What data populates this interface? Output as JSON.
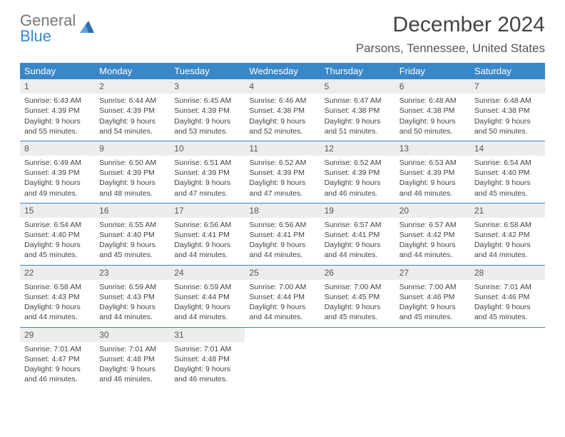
{
  "logo": {
    "top": "General",
    "bottom": "Blue"
  },
  "title": "December 2024",
  "location": "Parsons, Tennessee, United States",
  "colors": {
    "header_bg": "#3a87c7",
    "daynum_bg": "#eceded",
    "text": "#444",
    "border": "#3a87c7"
  },
  "day_labels": [
    "Sunday",
    "Monday",
    "Tuesday",
    "Wednesday",
    "Thursday",
    "Friday",
    "Saturday"
  ],
  "weeks": [
    [
      {
        "n": "1",
        "sr": "Sunrise: 6:43 AM",
        "ss": "Sunset: 4:39 PM",
        "dl": "Daylight: 9 hours and 55 minutes."
      },
      {
        "n": "2",
        "sr": "Sunrise: 6:44 AM",
        "ss": "Sunset: 4:39 PM",
        "dl": "Daylight: 9 hours and 54 minutes."
      },
      {
        "n": "3",
        "sr": "Sunrise: 6:45 AM",
        "ss": "Sunset: 4:39 PM",
        "dl": "Daylight: 9 hours and 53 minutes."
      },
      {
        "n": "4",
        "sr": "Sunrise: 6:46 AM",
        "ss": "Sunset: 4:38 PM",
        "dl": "Daylight: 9 hours and 52 minutes."
      },
      {
        "n": "5",
        "sr": "Sunrise: 6:47 AM",
        "ss": "Sunset: 4:38 PM",
        "dl": "Daylight: 9 hours and 51 minutes."
      },
      {
        "n": "6",
        "sr": "Sunrise: 6:48 AM",
        "ss": "Sunset: 4:38 PM",
        "dl": "Daylight: 9 hours and 50 minutes."
      },
      {
        "n": "7",
        "sr": "Sunrise: 6:48 AM",
        "ss": "Sunset: 4:38 PM",
        "dl": "Daylight: 9 hours and 50 minutes."
      }
    ],
    [
      {
        "n": "8",
        "sr": "Sunrise: 6:49 AM",
        "ss": "Sunset: 4:39 PM",
        "dl": "Daylight: 9 hours and 49 minutes."
      },
      {
        "n": "9",
        "sr": "Sunrise: 6:50 AM",
        "ss": "Sunset: 4:39 PM",
        "dl": "Daylight: 9 hours and 48 minutes."
      },
      {
        "n": "10",
        "sr": "Sunrise: 6:51 AM",
        "ss": "Sunset: 4:39 PM",
        "dl": "Daylight: 9 hours and 47 minutes."
      },
      {
        "n": "11",
        "sr": "Sunrise: 6:52 AM",
        "ss": "Sunset: 4:39 PM",
        "dl": "Daylight: 9 hours and 47 minutes."
      },
      {
        "n": "12",
        "sr": "Sunrise: 6:52 AM",
        "ss": "Sunset: 4:39 PM",
        "dl": "Daylight: 9 hours and 46 minutes."
      },
      {
        "n": "13",
        "sr": "Sunrise: 6:53 AM",
        "ss": "Sunset: 4:39 PM",
        "dl": "Daylight: 9 hours and 46 minutes."
      },
      {
        "n": "14",
        "sr": "Sunrise: 6:54 AM",
        "ss": "Sunset: 4:40 PM",
        "dl": "Daylight: 9 hours and 45 minutes."
      }
    ],
    [
      {
        "n": "15",
        "sr": "Sunrise: 6:54 AM",
        "ss": "Sunset: 4:40 PM",
        "dl": "Daylight: 9 hours and 45 minutes."
      },
      {
        "n": "16",
        "sr": "Sunrise: 6:55 AM",
        "ss": "Sunset: 4:40 PM",
        "dl": "Daylight: 9 hours and 45 minutes."
      },
      {
        "n": "17",
        "sr": "Sunrise: 6:56 AM",
        "ss": "Sunset: 4:41 PM",
        "dl": "Daylight: 9 hours and 44 minutes."
      },
      {
        "n": "18",
        "sr": "Sunrise: 6:56 AM",
        "ss": "Sunset: 4:41 PM",
        "dl": "Daylight: 9 hours and 44 minutes."
      },
      {
        "n": "19",
        "sr": "Sunrise: 6:57 AM",
        "ss": "Sunset: 4:41 PM",
        "dl": "Daylight: 9 hours and 44 minutes."
      },
      {
        "n": "20",
        "sr": "Sunrise: 6:57 AM",
        "ss": "Sunset: 4:42 PM",
        "dl": "Daylight: 9 hours and 44 minutes."
      },
      {
        "n": "21",
        "sr": "Sunrise: 6:58 AM",
        "ss": "Sunset: 4:42 PM",
        "dl": "Daylight: 9 hours and 44 minutes."
      }
    ],
    [
      {
        "n": "22",
        "sr": "Sunrise: 6:58 AM",
        "ss": "Sunset: 4:43 PM",
        "dl": "Daylight: 9 hours and 44 minutes."
      },
      {
        "n": "23",
        "sr": "Sunrise: 6:59 AM",
        "ss": "Sunset: 4:43 PM",
        "dl": "Daylight: 9 hours and 44 minutes."
      },
      {
        "n": "24",
        "sr": "Sunrise: 6:59 AM",
        "ss": "Sunset: 4:44 PM",
        "dl": "Daylight: 9 hours and 44 minutes."
      },
      {
        "n": "25",
        "sr": "Sunrise: 7:00 AM",
        "ss": "Sunset: 4:44 PM",
        "dl": "Daylight: 9 hours and 44 minutes."
      },
      {
        "n": "26",
        "sr": "Sunrise: 7:00 AM",
        "ss": "Sunset: 4:45 PM",
        "dl": "Daylight: 9 hours and 45 minutes."
      },
      {
        "n": "27",
        "sr": "Sunrise: 7:00 AM",
        "ss": "Sunset: 4:46 PM",
        "dl": "Daylight: 9 hours and 45 minutes."
      },
      {
        "n": "28",
        "sr": "Sunrise: 7:01 AM",
        "ss": "Sunset: 4:46 PM",
        "dl": "Daylight: 9 hours and 45 minutes."
      }
    ],
    [
      {
        "n": "29",
        "sr": "Sunrise: 7:01 AM",
        "ss": "Sunset: 4:47 PM",
        "dl": "Daylight: 9 hours and 46 minutes."
      },
      {
        "n": "30",
        "sr": "Sunrise: 7:01 AM",
        "ss": "Sunset: 4:48 PM",
        "dl": "Daylight: 9 hours and 46 minutes."
      },
      {
        "n": "31",
        "sr": "Sunrise: 7:01 AM",
        "ss": "Sunset: 4:48 PM",
        "dl": "Daylight: 9 hours and 46 minutes."
      },
      null,
      null,
      null,
      null
    ]
  ]
}
